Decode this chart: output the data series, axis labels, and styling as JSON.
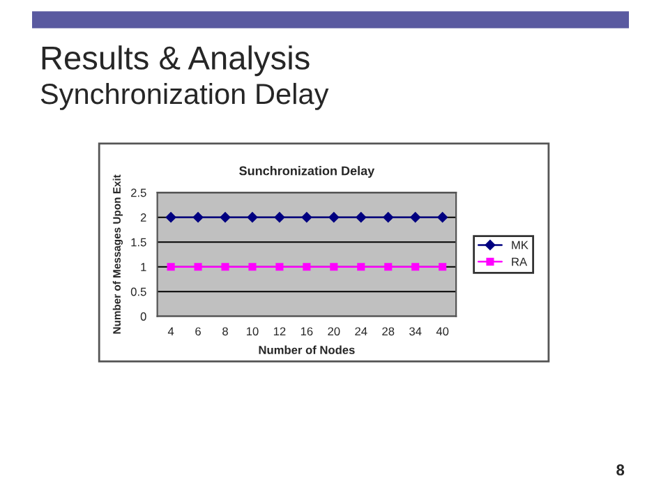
{
  "chart_data": {
    "type": "line",
    "title": "Sunchronization Delay",
    "xlabel": "Number of Nodes",
    "ylabel": "Number of Messages Upon Exit",
    "annotations": [
      "Results & Analysis",
      "Synchronization Delay",
      "8"
    ],
    "categories": [
      "4",
      "6",
      "8",
      "10",
      "12",
      "16",
      "20",
      "24",
      "28",
      "34",
      "40"
    ],
    "series": [
      {
        "name": "MK",
        "color": "#000080",
        "marker": "diamond",
        "values": [
          2,
          2,
          2,
          2,
          2,
          2,
          2,
          2,
          2,
          2,
          2
        ]
      },
      {
        "name": "RA",
        "color": "#ff00ff",
        "marker": "square",
        "values": [
          1,
          1,
          1,
          1,
          1,
          1,
          1,
          1,
          1,
          1,
          1
        ]
      }
    ],
    "ylim": [
      0,
      2.5
    ],
    "yticks": [
      0,
      0.5,
      1,
      1.5,
      2,
      2.5
    ],
    "grid": "y",
    "legend": "right"
  }
}
